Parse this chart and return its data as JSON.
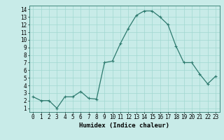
{
  "x": [
    0,
    1,
    2,
    3,
    4,
    5,
    6,
    7,
    8,
    9,
    10,
    11,
    12,
    13,
    14,
    15,
    16,
    17,
    18,
    19,
    20,
    21,
    22,
    23
  ],
  "y": [
    2.5,
    2.0,
    2.0,
    1.0,
    2.5,
    2.5,
    3.2,
    2.3,
    2.2,
    7.0,
    7.2,
    9.5,
    11.5,
    13.2,
    13.8,
    13.8,
    13.0,
    12.0,
    9.2,
    7.0,
    7.0,
    5.5,
    4.2,
    5.2
  ],
  "line_color": "#2d7a6e",
  "bg_color": "#c8ebe8",
  "grid_color": "#a0d8d0",
  "xlabel": "Humidex (Indice chaleur)",
  "ylabel_ticks": [
    1,
    2,
    3,
    4,
    5,
    6,
    7,
    8,
    9,
    10,
    11,
    12,
    13,
    14
  ],
  "xlim": [
    -0.5,
    23.5
  ],
  "ylim": [
    0.5,
    14.5
  ],
  "marker": "+",
  "marker_size": 3,
  "linewidth": 0.9,
  "xlabel_fontsize": 6.5,
  "tick_fontsize": 5.5
}
